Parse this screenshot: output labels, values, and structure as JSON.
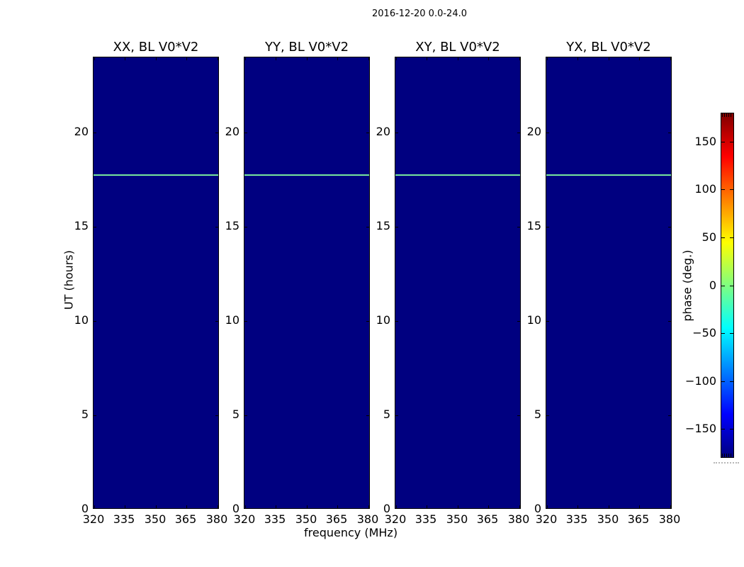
{
  "title": "2016-12-20 0.0-24.0",
  "axes": {
    "xlabel": "frequency (MHz)",
    "ylabel": "UT (hours)",
    "x_ticks": [
      320,
      335,
      350,
      365,
      380
    ],
    "x_tick_labels": [
      "320",
      "335",
      "350",
      "365",
      "380"
    ],
    "y_ticks": [
      0,
      5,
      10,
      15,
      20
    ],
    "y_tick_labels": [
      "0",
      "5",
      "10",
      "15",
      "20"
    ],
    "xlim": [
      319.8,
      381.2
    ],
    "ylim": [
      0,
      24
    ]
  },
  "colorbar": {
    "label": "phase (deg.)",
    "ticks": [
      150,
      100,
      50,
      0,
      -50,
      -100,
      -150
    ],
    "tick_labels": [
      "150",
      "100",
      "50",
      "0",
      "−50",
      "−100",
      "−150"
    ],
    "vmin": -180,
    "vmax": 180
  },
  "chart_data": {
    "type": "heatmap",
    "title": "2016-12-20 0.0-24.0",
    "colormap": "jet",
    "panels": [
      {
        "label": "XX, BL V0*V2",
        "pol": "XX",
        "baseline": "V0*V2"
      },
      {
        "label": "YY, BL V0*V2",
        "pol": "YY",
        "baseline": "V0*V2"
      },
      {
        "label": "XY, BL V0*V2",
        "pol": "XY",
        "baseline": "V0*V2"
      },
      {
        "label": "YX, BL V0*V2",
        "pol": "YX",
        "baseline": "V0*V2"
      }
    ],
    "x": {
      "label": "frequency (MHz)",
      "ticks": [
        320,
        335,
        350,
        365,
        380
      ],
      "range": [
        319.8,
        381.2
      ]
    },
    "y": {
      "label": "UT (hours)",
      "ticks": [
        0,
        5,
        10,
        15,
        20
      ],
      "range": [
        0,
        24
      ]
    },
    "value": {
      "label": "phase (deg.)",
      "range": [
        -180,
        180
      ],
      "colorbar_ticks": [
        150,
        100,
        50,
        0,
        -50,
        -100,
        -150
      ]
    },
    "content": {
      "background_phase_deg": -180,
      "stripe": {
        "ut_hours": 17.8,
        "approx_phase_deg": 5,
        "extent": "spans all frequencies in all four panels"
      }
    },
    "legend_position": "right colorbar"
  },
  "colors": {
    "background": "#ffffff",
    "panel_fill": "#000080",
    "stripe": "#77e69b",
    "cbar_stops": [
      "#000080",
      "#0000ff",
      "#00ffff",
      "#ffff00",
      "#ff0000",
      "#800000"
    ]
  }
}
